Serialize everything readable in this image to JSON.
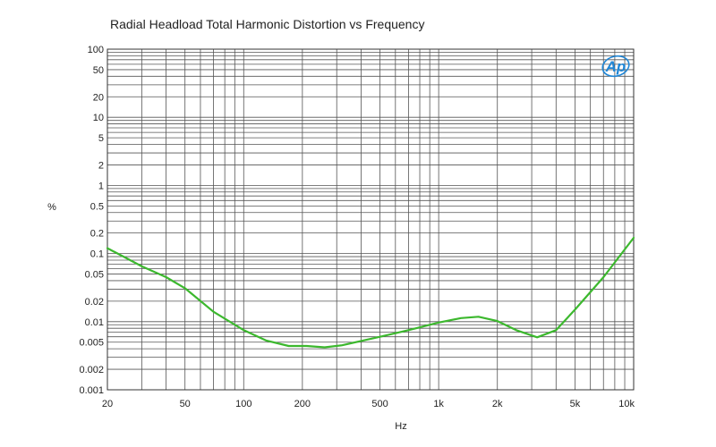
{
  "chart_data": {
    "type": "line",
    "title": "Radial Headload Total Harmonic Distortion vs Frequency",
    "xlabel": "Hz",
    "ylabel": "%",
    "x_scale": "log",
    "y_scale": "log",
    "xlim": [
      20,
      10000
    ],
    "ylim": [
      0.001,
      100
    ],
    "x_ticks": [
      {
        "value": 20,
        "label": "20"
      },
      {
        "value": 50,
        "label": "50"
      },
      {
        "value": 100,
        "label": "100"
      },
      {
        "value": 200,
        "label": "200"
      },
      {
        "value": 500,
        "label": "500"
      },
      {
        "value": 1000,
        "label": "1k"
      },
      {
        "value": 2000,
        "label": "2k"
      },
      {
        "value": 5000,
        "label": "5k"
      },
      {
        "value": 10000,
        "label": "10k"
      }
    ],
    "y_ticks": [
      {
        "value": 100,
        "label": "100"
      },
      {
        "value": 50,
        "label": "50"
      },
      {
        "value": 20,
        "label": "20"
      },
      {
        "value": 10,
        "label": "10"
      },
      {
        "value": 5,
        "label": "5"
      },
      {
        "value": 2,
        "label": "2"
      },
      {
        "value": 1,
        "label": "1"
      },
      {
        "value": 0.5,
        "label": "0.5"
      },
      {
        "value": 0.2,
        "label": "0.2"
      },
      {
        "value": 0.1,
        "label": "0.1"
      },
      {
        "value": 0.05,
        "label": "0.05"
      },
      {
        "value": 0.02,
        "label": "0.02"
      },
      {
        "value": 0.01,
        "label": "0.01"
      },
      {
        "value": 0.005,
        "label": "0.005"
      },
      {
        "value": 0.002,
        "label": "0.002"
      },
      {
        "value": 0.001,
        "label": "0.001"
      }
    ],
    "grid": true,
    "series": [
      {
        "color": "#3cb82e",
        "x": [
          20,
          30,
          40,
          50,
          70,
          100,
          130,
          170,
          210,
          260,
          320,
          400,
          500,
          700,
          1000,
          1300,
          1600,
          2000,
          2500,
          3200,
          4000,
          5000,
          7000,
          10000
        ],
        "y": [
          0.12,
          0.065,
          0.045,
          0.031,
          0.014,
          0.0075,
          0.0053,
          0.0044,
          0.0044,
          0.0042,
          0.0045,
          0.0052,
          0.006,
          0.0075,
          0.0097,
          0.0113,
          0.0118,
          0.0102,
          0.0075,
          0.0059,
          0.0075,
          0.015,
          0.045,
          0.17
        ]
      }
    ]
  },
  "logo": {
    "text": "Ap",
    "color": "#1f86d6"
  },
  "colors": {
    "grid": "#555555",
    "curve": "#3cb82e"
  }
}
